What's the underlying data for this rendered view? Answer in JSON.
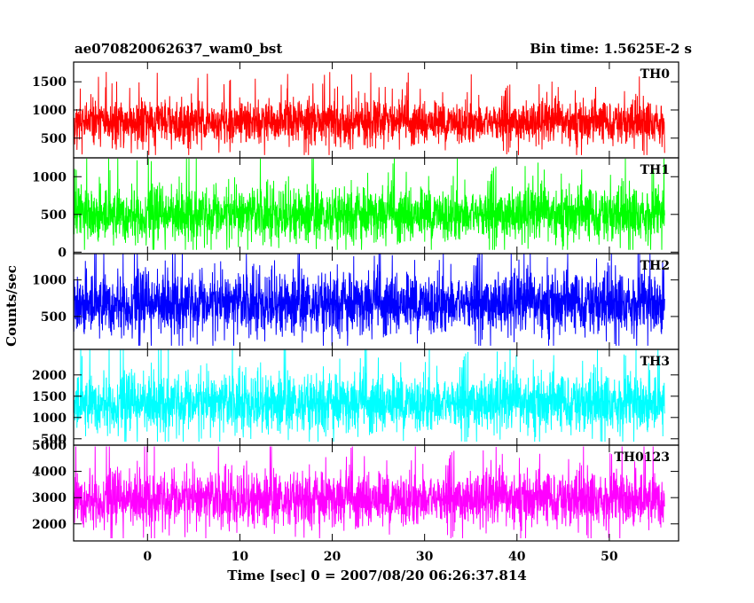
{
  "chart_data": {
    "type": "line",
    "title": "ae070820062637_wam0_bst",
    "subtitle": "Bin time: 1.5625E-2 s",
    "xlabel": "Time [sec] 0 = 2007/08/20 06:26:37.814",
    "ylabel": "Counts/sec",
    "xlim": [
      -8,
      57.5
    ],
    "x_data_range": [
      -8,
      56
    ],
    "bin_time": 0.015625,
    "x_ticks": [
      0,
      10,
      20,
      30,
      40,
      50
    ],
    "grid": false,
    "legend": "none",
    "panels": [
      {
        "name": "TH0",
        "color": "#ff0000",
        "ylim": [
          150,
          1850
        ],
        "y_ticks": [
          500,
          1000,
          1500
        ],
        "mean": 780,
        "std": 190,
        "min": 200,
        "max": 1840
      },
      {
        "name": "TH1",
        "color": "#00ff00",
        "ylim": [
          -20,
          1250
        ],
        "y_ticks": [
          0,
          500,
          1000
        ],
        "mean": 500,
        "std": 180,
        "min": 30,
        "max": 1240
      },
      {
        "name": "TH2",
        "color": "#0000ff",
        "ylim": [
          50,
          1360
        ],
        "y_ticks": [
          500,
          1000
        ],
        "mean": 680,
        "std": 210,
        "min": 100,
        "max": 1355
      },
      {
        "name": "TH3",
        "color": "#00ffff",
        "ylim": [
          350,
          2600
        ],
        "y_ticks": [
          500,
          1000,
          1500,
          2000
        ],
        "mean": 1340,
        "std": 340,
        "min": 430,
        "max": 2600
      },
      {
        "name": "TH0123",
        "color": "#ff00ff",
        "ylim": [
          1350,
          5000
        ],
        "y_ticks": [
          2000,
          3000,
          4000,
          5000
        ],
        "mean": 2950,
        "std": 520,
        "min": 1450,
        "max": 4950
      }
    ]
  }
}
